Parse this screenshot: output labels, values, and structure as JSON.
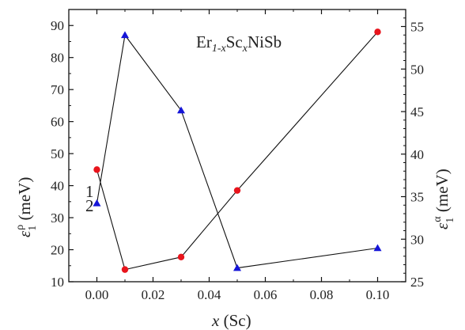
{
  "chart_data": {
    "type": "line",
    "title": "Er1-xScxNiSb",
    "title_parts": {
      "element1": "Er",
      "sub1": "1-x",
      "element2": "Sc",
      "sub2": "x",
      "rest": "NiSb"
    },
    "xlabel": "x (Sc)",
    "xlabel_parts": {
      "var": "x",
      "unit": " (Sc)"
    },
    "ylabel_left": "ε1ρ (meV)",
    "ylabel_left_parts": {
      "sym": "ε",
      "sup": "ρ",
      "sub": "1",
      "unit": " (meV)"
    },
    "ylabel_right": "ε1α (meV)",
    "ylabel_right_parts": {
      "sym": "ε",
      "sup": "α",
      "sub": "1",
      "unit": " (meV)"
    },
    "xlim": [
      -0.01,
      0.11
    ],
    "ylim_left": [
      10,
      95
    ],
    "ylim_right": [
      25,
      57
    ],
    "x_ticks": [
      "0.00",
      "0.02",
      "0.04",
      "0.06",
      "0.08",
      "0.10"
    ],
    "y_left_ticks": [
      "10",
      "20",
      "30",
      "40",
      "50",
      "60",
      "70",
      "80",
      "90"
    ],
    "y_right_ticks": [
      "25",
      "30",
      "35",
      "40",
      "45",
      "50",
      "55"
    ],
    "grid": false,
    "series": [
      {
        "name": "1",
        "axis": "left",
        "marker": "circle",
        "color": "#e8141c",
        "x": [
          0.0,
          0.01,
          0.03,
          0.05,
          0.1
        ],
        "y": [
          45,
          13.8,
          17.7,
          38.5,
          88
        ]
      },
      {
        "name": "2",
        "axis": "left",
        "marker": "triangle",
        "color": "#1515d8",
        "x": [
          0.0,
          0.01,
          0.03,
          0.05,
          0.1
        ],
        "y": [
          34.5,
          87,
          63.5,
          14.3,
          20.5
        ]
      }
    ]
  }
}
